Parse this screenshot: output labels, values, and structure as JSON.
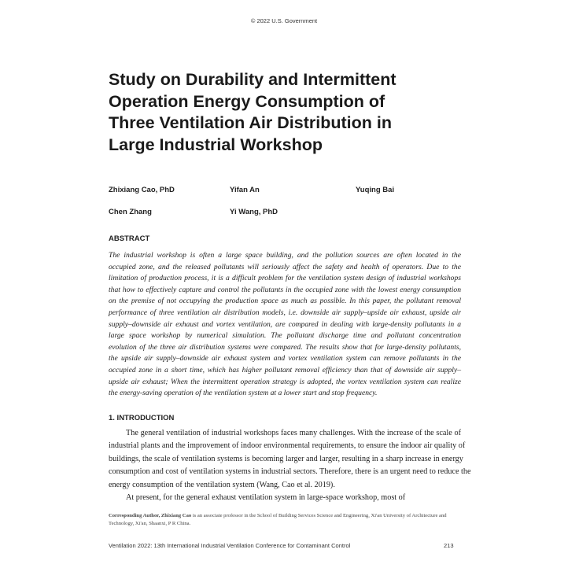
{
  "header": {
    "copyright": "© 2022 U.S. Government"
  },
  "title_lines": [
    "Study on Durability and Intermittent",
    "Operation Energy Consumption of",
    "Three Ventilation Air Distribution in",
    "Large Industrial Workshop"
  ],
  "authors": [
    "Zhixiang Cao, PhD",
    "Yifan An",
    "Yuqing Bai",
    "Chen Zhang",
    "Yi Wang, PhD"
  ],
  "abstract": {
    "heading": "ABSTRACT",
    "lines": [
      "The industrial workshop is often a large space building, and the pollution sources are often located in the",
      "occupied zone, and the released pollutants will seriously affect the safety and health of operators. Due to the",
      "limitation of production process, it is a difficult problem for the ventilation system design of industrial workshops",
      "that how to effectively capture and control the pollutants in the occupied zone with the lowest energy consumption",
      "on the premise of not occupying the production space as much as possible. In this paper, the pollutant removal",
      "performance of three ventilation air distribution models, i.e. downside air supply–upside air exhaust, upside air",
      "supply–downside air exhaust and vortex ventilation, are compared in dealing with large-density pollutants in a",
      "large space workshop by numerical simulation. The pollutant discharge time and pollutant concentration",
      "evolution of the three air distribution systems were compared. The results show that for large-density pollutants,",
      "the upside air supply–downside air exhaust system and vortex ventilation system can remove pollutants in the",
      "occupied zone in a short time, which has higher pollutant removal efficiency than that of downside air supply–",
      "upside air exhaust; When the intermittent operation strategy is adopted, the vortex ventilation system can realize",
      "the energy-saving operation of the ventilation system at a lower start and stop frequency."
    ]
  },
  "introduction": {
    "heading": "1.  INTRODUCTION",
    "lines": [
      "The general ventilation of industrial workshops faces many challenges. With the increase of the scale of",
      "industrial plants and the improvement of indoor environmental requirements, to ensure the indoor air quality of",
      "buildings, the scale of ventilation systems is becoming larger and larger, resulting in a sharp increase in energy",
      "consumption and cost of ventilation systems in industrial sectors. Therefore, there is an urgent need to reduce the",
      "energy consumption of the ventilation system (Wang, Cao et al. 2019).",
      "At present, for the general exhaust ventilation system in large-space workshop, most of"
    ]
  },
  "footnote": {
    "bold": "Corresponding Author, Zhixiang Cao",
    "text": " is an associate professor in the School of Building Services Science and Engineering, Xi'an University of Architecture and Technology, Xi'an, Shaanxi, P R China."
  },
  "footer": {
    "conference": "Ventilation 2022: 13th International Industrial Ventilation Conference for Contaminant Control",
    "page": "213"
  }
}
